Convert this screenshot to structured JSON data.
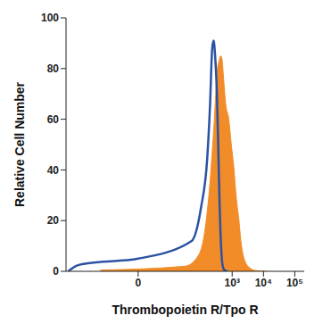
{
  "chart_data": {
    "type": "histogram",
    "xlabel": "Thrombopoietin R/Tpo R",
    "ylabel": "Relative Cell Number",
    "log": "x",
    "xlim": [
      -200,
      200000
    ],
    "xticks": [
      0,
      {
        "value": 1000,
        "label": "10³"
      },
      {
        "value": 10000,
        "label": "10⁴"
      },
      {
        "value": 100000,
        "label": "10⁵"
      }
    ],
    "ylim": [
      0,
      100
    ],
    "yticks": [
      0,
      20,
      40,
      60,
      80,
      100
    ],
    "series": [
      {
        "color": "#2b52a3",
        "type": "line",
        "x": [
          -170,
          -100,
          -50,
          0,
          50,
          100,
          160,
          195,
          230,
          255,
          285,
          325,
          350,
          400,
          450,
          500,
          560,
          700
        ],
        "values": [
          0,
          2,
          3,
          5,
          12,
          25,
          45,
          65,
          88,
          91,
          85,
          70,
          55,
          25,
          8,
          2,
          0.5,
          0
        ]
      },
      {
        "color": "#f28c28",
        "type": "area",
        "x": [
          -15,
          30,
          80,
          130,
          195,
          270,
          340,
          380,
          430,
          470,
          540,
          620,
          780,
          940,
          1150,
          1330,
          1650,
          1900,
          2800,
          4000,
          5500,
          13000
        ],
        "values": [
          0.5,
          2,
          6,
          15,
          35,
          60,
          80,
          83,
          85,
          84,
          75,
          66,
          60,
          50,
          40,
          30,
          20,
          12,
          3,
          1,
          0.3,
          0
        ]
      }
    ]
  }
}
